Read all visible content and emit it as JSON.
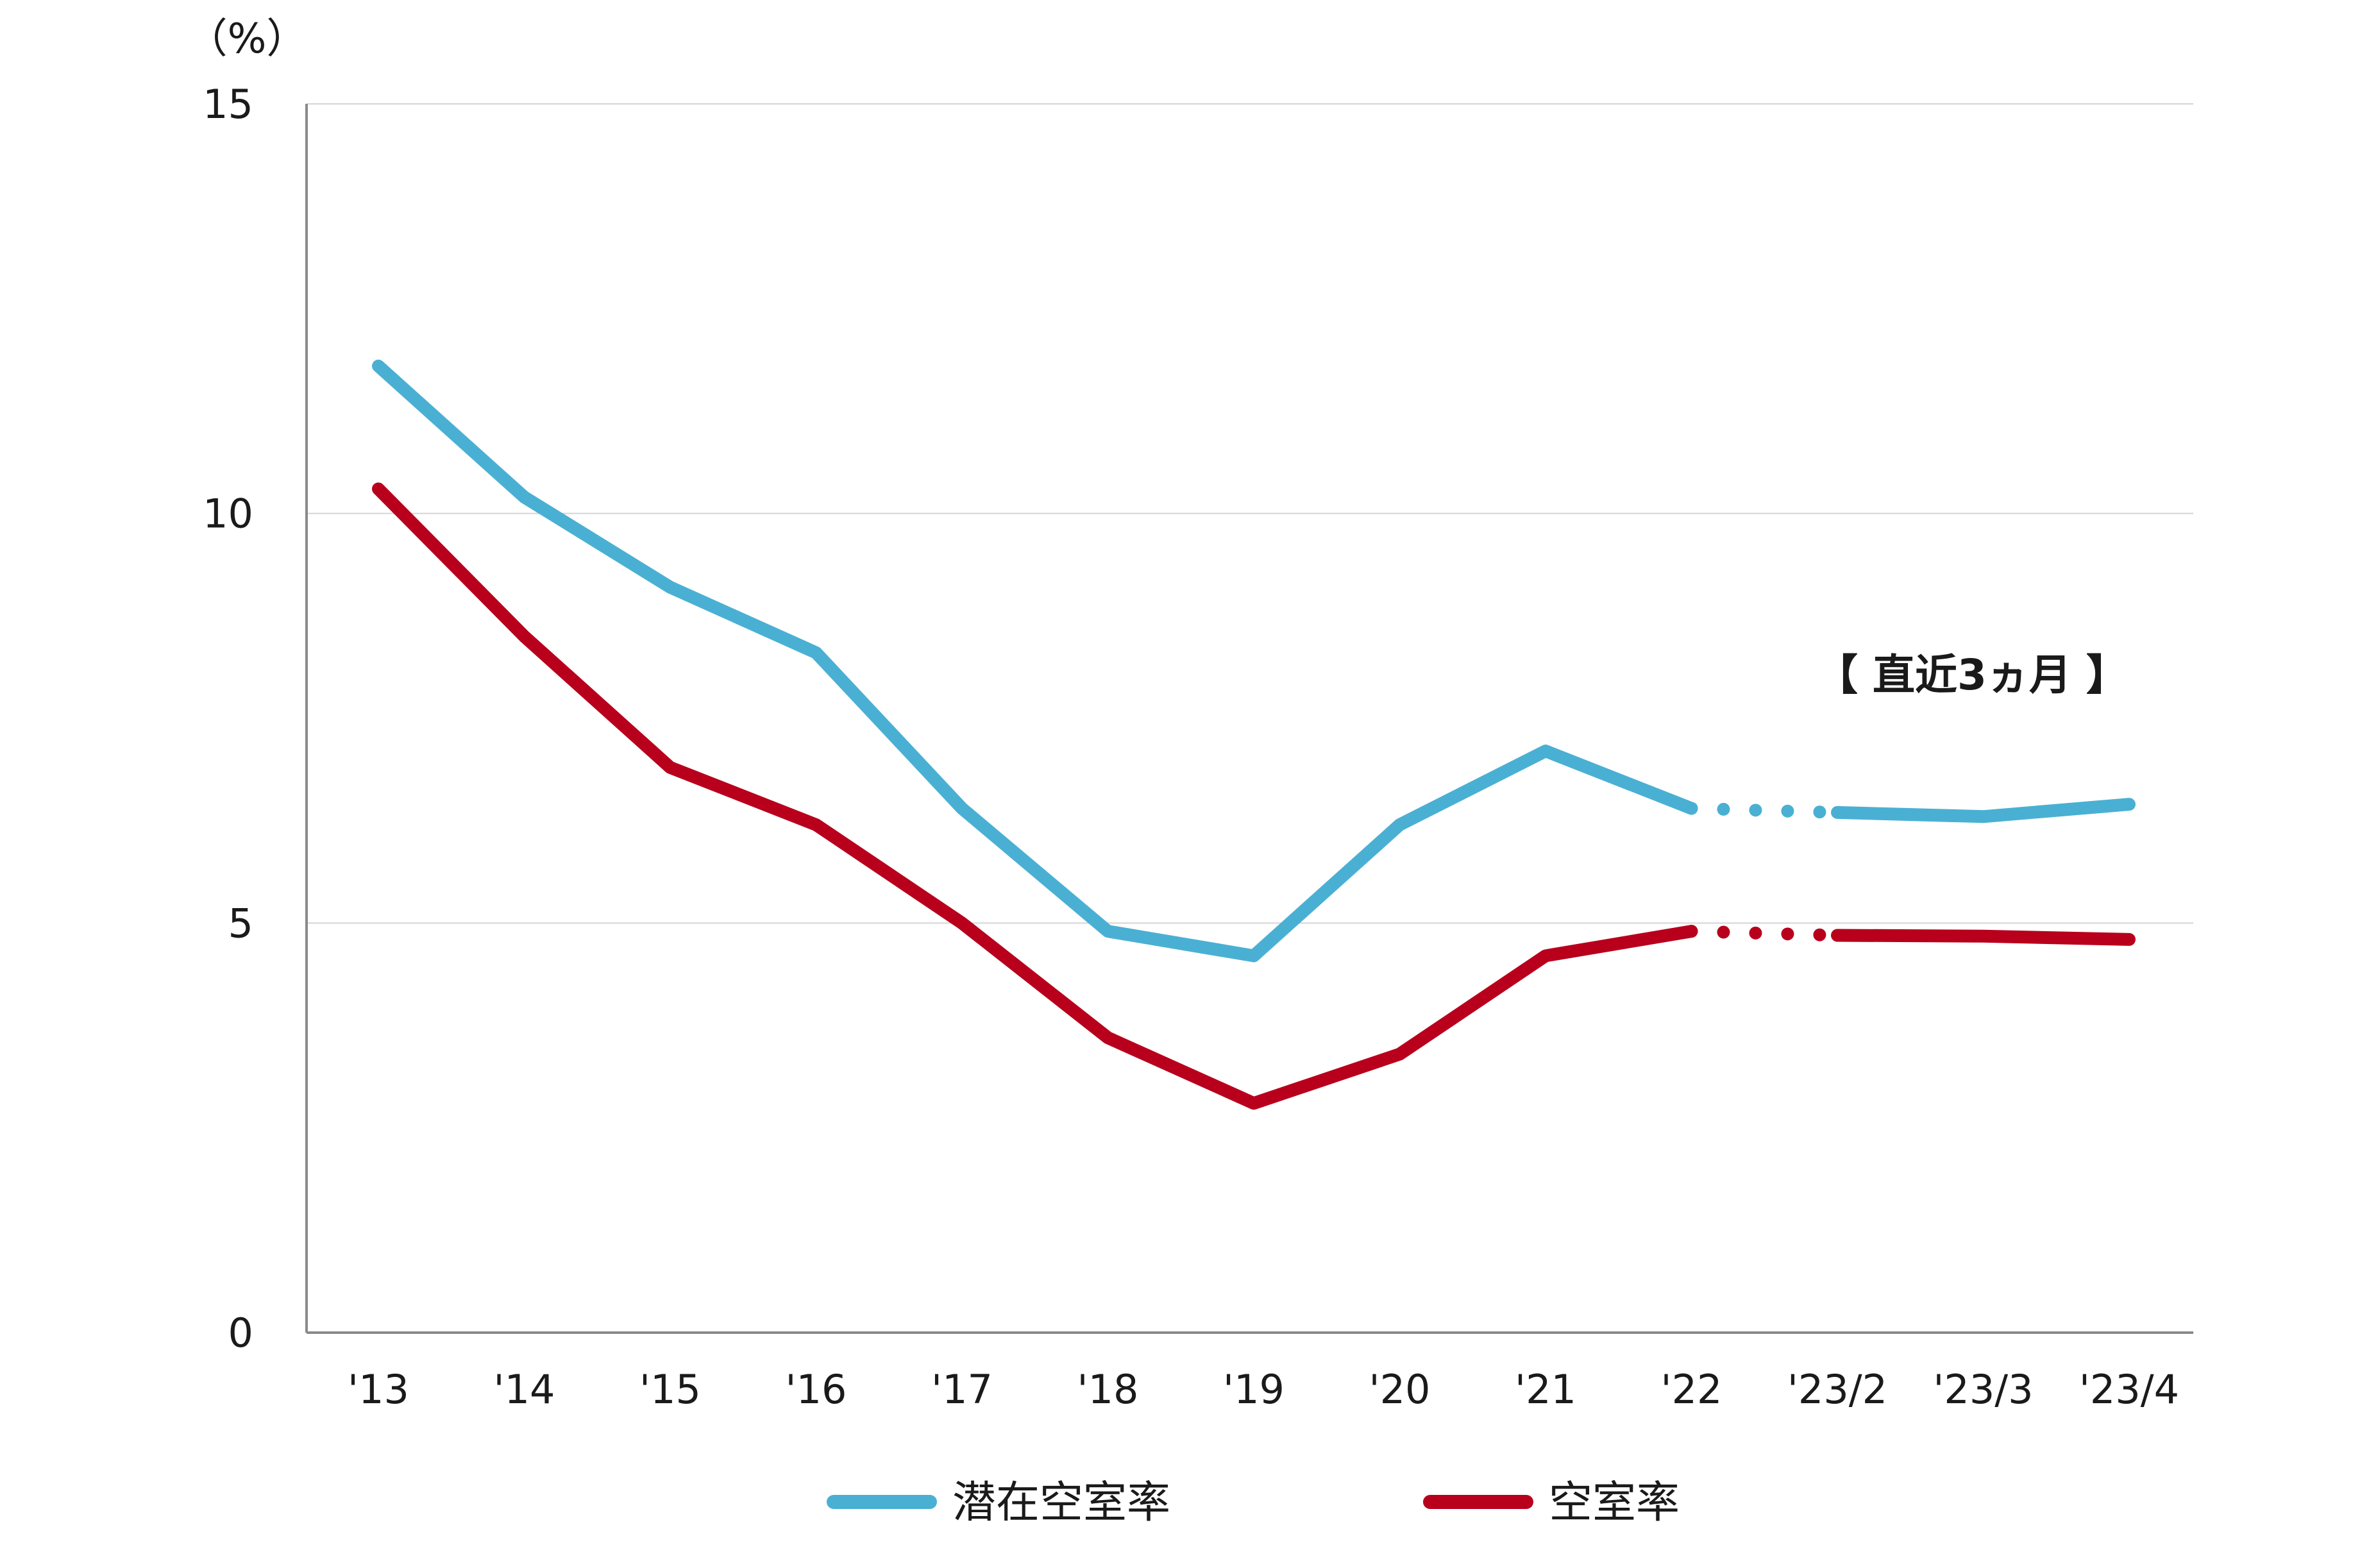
{
  "chart_data": {
    "type": "line",
    "unit_label": "（%）",
    "ylim": [
      0,
      15
    ],
    "yticks": [
      "0",
      "5",
      "10",
      "15"
    ],
    "categories": [
      "'13",
      "'14",
      "'15",
      "'16",
      "'17",
      "'18",
      "'19",
      "'20",
      "'21",
      "'22",
      "'23/2",
      "'23/3",
      "'23/4"
    ],
    "annotation": "【 直近3ヵ月 】",
    "grid": true,
    "legend_position": "bottom",
    "series": [
      {
        "name": "潜在空室率",
        "color": "#4ab0d3",
        "values": [
          11.8,
          10.2,
          9.1,
          8.3,
          6.4,
          4.9,
          4.6,
          6.2,
          7.1,
          6.4,
          6.35,
          6.3,
          6.45
        ]
      },
      {
        "name": "空室率",
        "color": "#b8001c",
        "values": [
          10.3,
          8.5,
          6.9,
          6.2,
          5.0,
          3.6,
          2.8,
          3.4,
          4.6,
          4.9,
          4.85,
          4.84,
          4.8
        ]
      }
    ]
  }
}
